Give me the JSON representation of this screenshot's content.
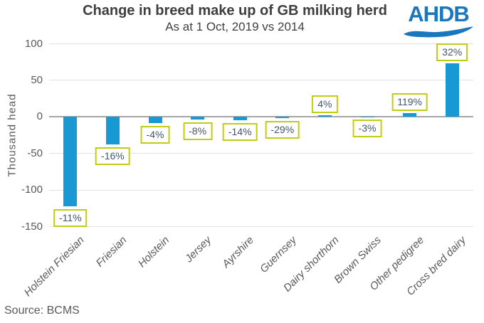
{
  "header": {
    "title": "Change in breed make up of GB milking herd",
    "subtitle": "As at 1 Oct, 2019 vs 2014"
  },
  "logo": {
    "text": "AHDB",
    "color": "#1b77bd"
  },
  "source": {
    "text": "Source: BCMS"
  },
  "chart_data": {
    "type": "bar",
    "title": "Change in breed make up of GB milking herd",
    "subtitle": "As at 1 Oct, 2019 vs 2014",
    "xlabel": "",
    "ylabel": "Thousand head",
    "units": "thousand head",
    "ylim": [
      -150,
      100
    ],
    "yticks": [
      100,
      50,
      0,
      -50,
      -100,
      -150
    ],
    "grid": true,
    "legend": false,
    "categories": [
      "Holstein Friesian",
      "Friesian",
      "Holstein",
      "Jersey",
      "Ayrshire",
      "Guernsey",
      "Dairy shorthorn",
      "Brown Swiss",
      "Other pedigree",
      "Cross bred dairy"
    ],
    "values": [
      -123,
      -38,
      -8.5,
      -4,
      -5,
      -2,
      2,
      -0.5,
      5,
      73
    ],
    "bar_labels": [
      "-11%",
      "-16%",
      "-4%",
      "-8%",
      "-14%",
      "-29%",
      "4%",
      "-3%",
      "119%",
      "32%"
    ],
    "bar_color": "#1899d3",
    "label_border_color": "#c3cc14",
    "label_text_color": "#44546a",
    "axis_color": "#a6a6a6",
    "gridline_color": "#e2e2e2"
  }
}
